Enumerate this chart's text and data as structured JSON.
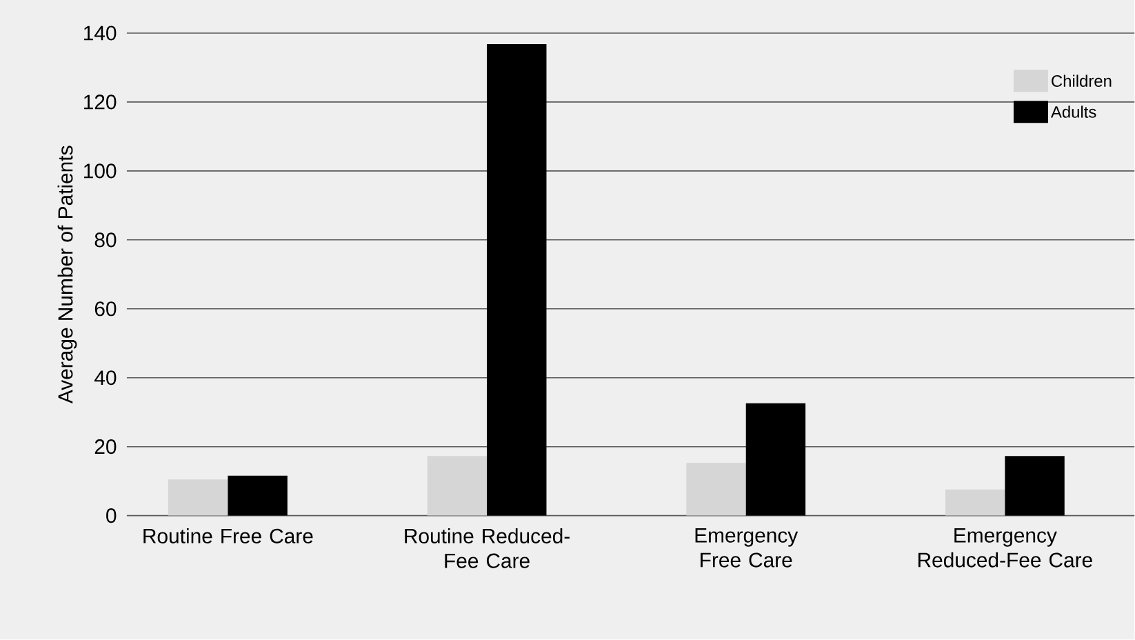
{
  "chart_data": {
    "type": "bar",
    "ylabel": "Average Number of Patients",
    "categories": [
      "Routine Free Care",
      "Routine Reduced-Fee Care",
      "Emergency Free Care",
      "Emergency Reduced-Fee Care"
    ],
    "series": [
      {
        "name": "Children",
        "color": "#d6d6d6",
        "values": [
          10.5,
          17.3,
          15.3,
          7.6
        ]
      },
      {
        "name": "Adults",
        "color": "#000000",
        "values": [
          11.6,
          136.8,
          32.6,
          17.3
        ]
      }
    ],
    "ylim": [
      0,
      140
    ],
    "yticks": [
      0,
      20,
      40,
      60,
      80,
      100,
      120,
      140
    ],
    "grid": "y",
    "legend": "top right"
  }
}
